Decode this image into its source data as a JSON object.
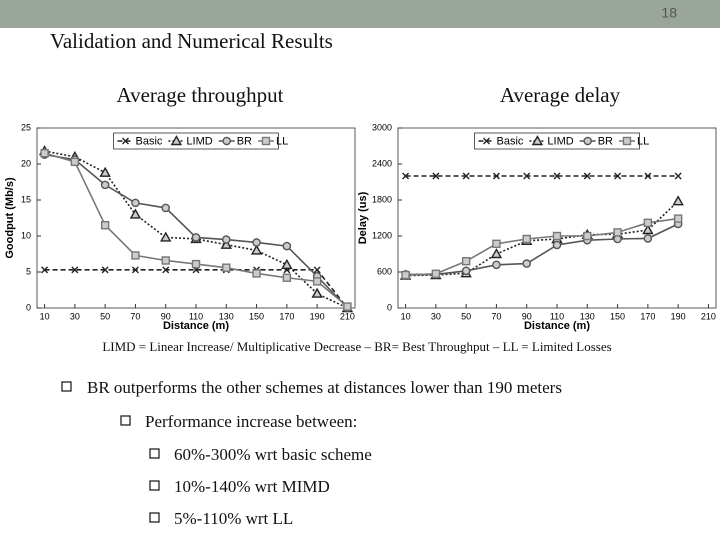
{
  "slide": {
    "page_number": "18",
    "title": "Validation and Numerical Results",
    "caption": "LIMD = Linear Increase/ Multiplicative Decrease – BR= Best Throughput – LL = Limited Losses",
    "bullets": [
      "BR outperforms the other schemes at distances lower than 190 meters",
      "Performance increase between:",
      "60%-300% wrt basic scheme",
      "10%-140% wrt MIMD",
      "5%-110% wrt LL"
    ]
  },
  "chart_data": [
    {
      "type": "line",
      "title": "Average throughput",
      "x_label": "Distance (m)",
      "y_label": "Goodput (Mb/s)",
      "x": [
        10,
        30,
        50,
        70,
        90,
        110,
        130,
        150,
        170,
        190,
        210
      ],
      "xlim": [
        5,
        215
      ],
      "xticks": [
        10,
        30,
        50,
        70,
        90,
        110,
        130,
        150,
        170,
        190,
        210
      ],
      "ylim": [
        0,
        25
      ],
      "yticks": [
        0,
        5,
        10,
        15,
        20,
        25
      ],
      "legend": "top",
      "series": [
        {
          "name": "Basic",
          "color": "#222222",
          "marker": "x",
          "dash": "dashed",
          "values": [
            5.3,
            5.3,
            5.3,
            5.3,
            5.3,
            5.3,
            5.3,
            5.3,
            5.3,
            5.3,
            0
          ]
        },
        {
          "name": "LIMD",
          "color": "#222222",
          "marker": "triangle",
          "dash": "dotted",
          "values": [
            21.8,
            21,
            18.8,
            13,
            9.8,
            9.6,
            8.8,
            8,
            6,
            2,
            0
          ]
        },
        {
          "name": "BR",
          "color": "#555555",
          "marker": "circle",
          "dash": "solid",
          "values": [
            21.3,
            20.6,
            17.1,
            14.6,
            13.9,
            9.8,
            9.5,
            9.1,
            8.6,
            4.4,
            0
          ]
        },
        {
          "name": "LL",
          "color": "#777777",
          "marker": "square",
          "dash": "solid",
          "values": [
            21.5,
            20.3,
            11.5,
            7.3,
            6.6,
            6.1,
            5.6,
            4.8,
            4.2,
            3.7,
            0.2
          ]
        }
      ]
    },
    {
      "type": "line",
      "title": "Average delay",
      "x_label": "Distance (m)",
      "y_label": "Delay (us)",
      "x": [
        10,
        30,
        50,
        70,
        90,
        110,
        130,
        150,
        170,
        190
      ],
      "xlim": [
        5,
        215
      ],
      "xticks": [
        10,
        30,
        50,
        70,
        90,
        110,
        130,
        150,
        170,
        190,
        210
      ],
      "ylim": [
        0,
        3000
      ],
      "yticks": [
        0,
        600,
        1200,
        1800,
        2400,
        3000
      ],
      "legend": "top",
      "series": [
        {
          "name": "Basic",
          "color": "#222222",
          "marker": "x",
          "dash": "dashed",
          "values": [
            2200,
            2200,
            2200,
            2200,
            2200,
            2200,
            2200,
            2200,
            2200,
            2200
          ]
        },
        {
          "name": "LIMD",
          "color": "#222222",
          "marker": "triangle",
          "dash": "dotted",
          "values": [
            540,
            550,
            580,
            900,
            1120,
            1150,
            1220,
            1230,
            1300,
            1780
          ]
        },
        {
          "name": "BR",
          "color": "#555555",
          "marker": "circle",
          "dash": "solid",
          "values": [
            560,
            560,
            620,
            720,
            740,
            1050,
            1130,
            1150,
            1160,
            1400
          ]
        },
        {
          "name": "LL",
          "color": "#777777",
          "marker": "square",
          "dash": "solid",
          "values": [
            550,
            570,
            780,
            1070,
            1150,
            1200,
            1200,
            1260,
            1420,
            1490
          ]
        }
      ]
    }
  ]
}
